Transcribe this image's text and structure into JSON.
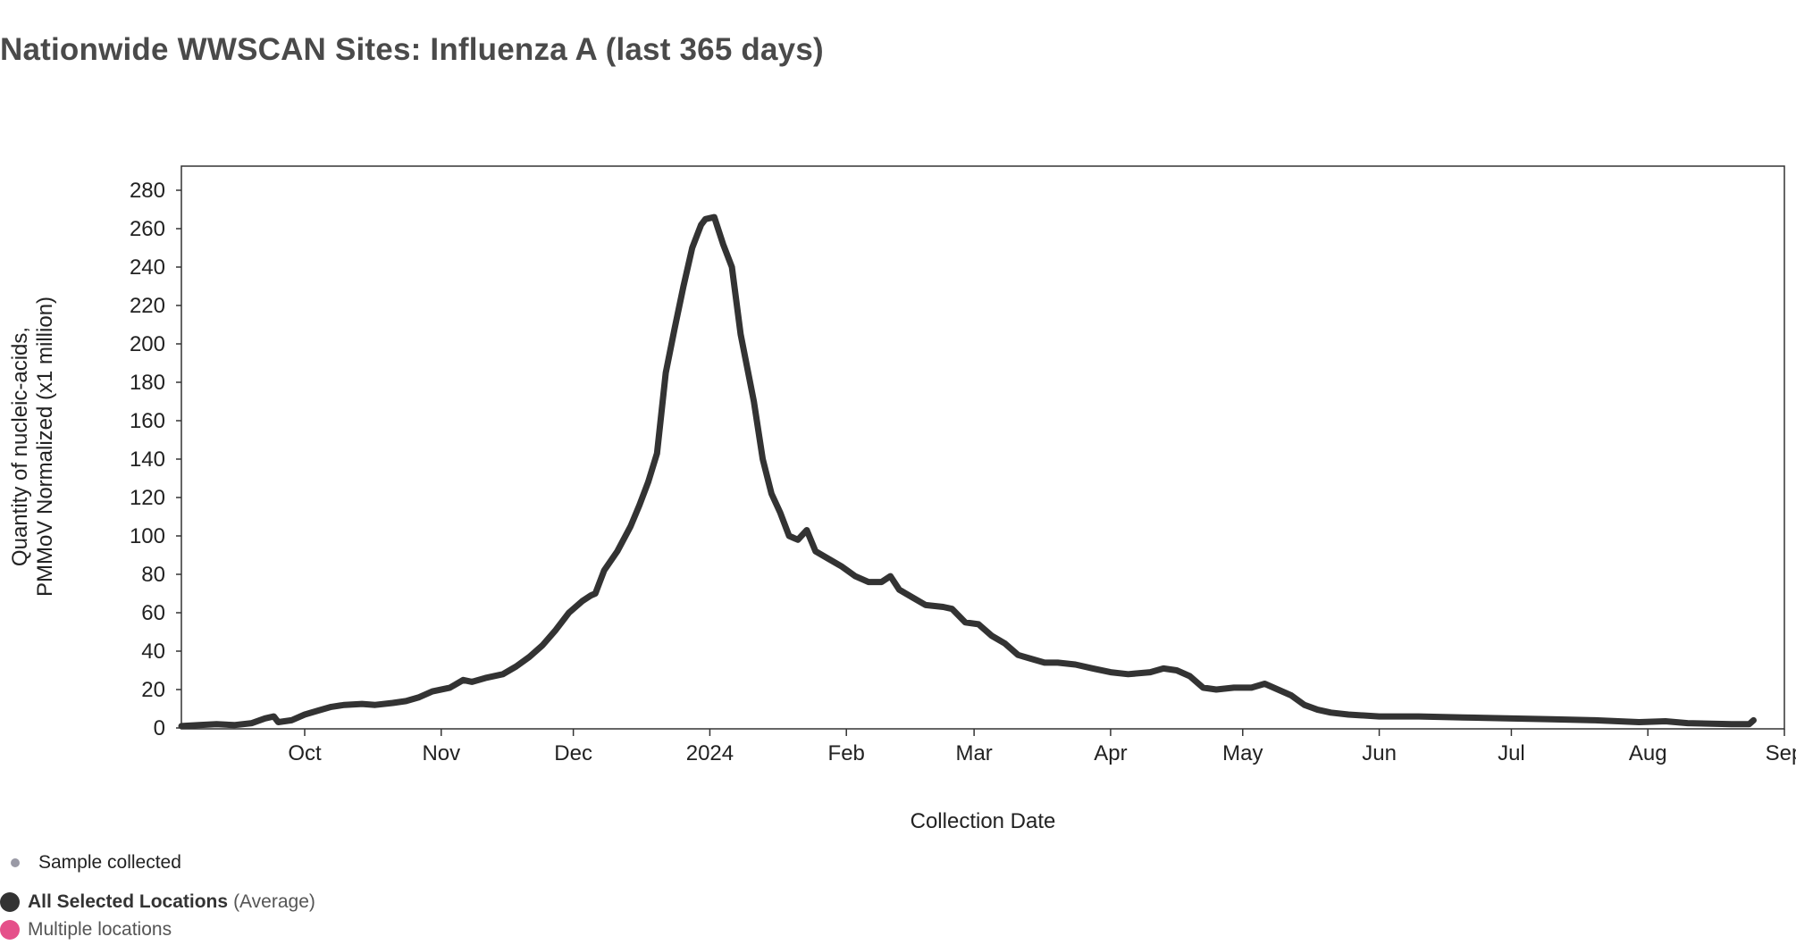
{
  "page": {
    "title": "Nationwide WWSCAN Sites: Influenza A (last 365 days)"
  },
  "legend": {
    "sample_label": "Sample collected",
    "average_bold": "All Selected Locations",
    "average_suffix": "(Average)",
    "multiple_label": "Multiple locations",
    "sample_color": "#9a9aa6",
    "average_color": "#333333",
    "multiple_color": "#e5508a"
  },
  "chart_data": {
    "type": "line",
    "xlabel": "Collection Date",
    "ylabel_lines": [
      "Quantity of nucleic-acids,",
      "PMMoV Normalized (x1 million)"
    ],
    "xlim": [
      "2023-09-03",
      "2024-09-01"
    ],
    "ylim": [
      0,
      290
    ],
    "y_ticks": [
      0,
      20,
      40,
      60,
      80,
      100,
      120,
      140,
      160,
      180,
      200,
      220,
      240,
      260,
      280
    ],
    "x_ticks": [
      {
        "date": "2023-10-01",
        "label": "Oct"
      },
      {
        "date": "2023-11-01",
        "label": "Nov"
      },
      {
        "date": "2023-12-01",
        "label": "Dec"
      },
      {
        "date": "2024-01-01",
        "label": "2024"
      },
      {
        "date": "2024-02-01",
        "label": "Feb"
      },
      {
        "date": "2024-03-01",
        "label": "Mar"
      },
      {
        "date": "2024-04-01",
        "label": "Apr"
      },
      {
        "date": "2024-05-01",
        "label": "May"
      },
      {
        "date": "2024-06-01",
        "label": "Jun"
      },
      {
        "date": "2024-07-01",
        "label": "Jul"
      },
      {
        "date": "2024-08-01",
        "label": "Aug"
      },
      {
        "date": "2024-09-01",
        "label": "Sep"
      }
    ],
    "grid": false,
    "series": [
      {
        "name": "All Selected Locations",
        "color": "#333333",
        "points": [
          [
            "2023-09-03",
            1
          ],
          [
            "2023-09-07",
            1.5
          ],
          [
            "2023-09-11",
            2
          ],
          [
            "2023-09-15",
            1.5
          ],
          [
            "2023-09-19",
            2.5
          ],
          [
            "2023-09-22",
            5
          ],
          [
            "2023-09-24",
            6
          ],
          [
            "2023-09-25",
            3
          ],
          [
            "2023-09-28",
            4
          ],
          [
            "2023-10-01",
            7
          ],
          [
            "2023-10-04",
            9
          ],
          [
            "2023-10-07",
            11
          ],
          [
            "2023-10-10",
            12
          ],
          [
            "2023-10-14",
            12.5
          ],
          [
            "2023-10-17",
            12
          ],
          [
            "2023-10-21",
            13
          ],
          [
            "2023-10-24",
            14
          ],
          [
            "2023-10-27",
            16
          ],
          [
            "2023-10-30",
            19
          ],
          [
            "2023-11-03",
            21
          ],
          [
            "2023-11-06",
            25
          ],
          [
            "2023-11-08",
            24
          ],
          [
            "2023-11-11",
            26
          ],
          [
            "2023-11-15",
            28
          ],
          [
            "2023-11-18",
            32
          ],
          [
            "2023-11-21",
            37
          ],
          [
            "2023-11-24",
            43
          ],
          [
            "2023-11-27",
            51
          ],
          [
            "2023-11-30",
            60
          ],
          [
            "2023-12-03",
            66
          ],
          [
            "2023-12-05",
            69
          ],
          [
            "2023-12-06",
            70
          ],
          [
            "2023-12-08",
            82
          ],
          [
            "2023-12-11",
            92
          ],
          [
            "2023-12-14",
            105
          ],
          [
            "2023-12-16",
            116
          ],
          [
            "2023-12-18",
            128
          ],
          [
            "2023-12-20",
            143
          ],
          [
            "2023-12-22",
            185
          ],
          [
            "2023-12-24",
            208
          ],
          [
            "2023-12-26",
            230
          ],
          [
            "2023-12-28",
            250
          ],
          [
            "2023-12-30",
            262
          ],
          [
            "2023-12-31",
            265
          ],
          [
            "2024-01-02",
            266
          ],
          [
            "2024-01-04",
            252
          ],
          [
            "2024-01-06",
            240
          ],
          [
            "2024-01-08",
            205
          ],
          [
            "2024-01-11",
            170
          ],
          [
            "2024-01-13",
            140
          ],
          [
            "2024-01-15",
            122
          ],
          [
            "2024-01-17",
            112
          ],
          [
            "2024-01-19",
            100
          ],
          [
            "2024-01-21",
            98
          ],
          [
            "2024-01-23",
            103
          ],
          [
            "2024-01-25",
            92
          ],
          [
            "2024-01-28",
            88
          ],
          [
            "2024-01-31",
            84
          ],
          [
            "2024-02-03",
            79
          ],
          [
            "2024-02-06",
            76
          ],
          [
            "2024-02-09",
            76
          ],
          [
            "2024-02-11",
            79
          ],
          [
            "2024-02-13",
            72
          ],
          [
            "2024-02-16",
            68
          ],
          [
            "2024-02-19",
            64
          ],
          [
            "2024-02-23",
            63
          ],
          [
            "2024-02-25",
            62
          ],
          [
            "2024-02-28",
            55
          ],
          [
            "2024-03-02",
            54
          ],
          [
            "2024-03-05",
            48
          ],
          [
            "2024-03-08",
            44
          ],
          [
            "2024-03-11",
            38
          ],
          [
            "2024-03-14",
            36
          ],
          [
            "2024-03-17",
            34
          ],
          [
            "2024-03-20",
            34
          ],
          [
            "2024-03-24",
            33
          ],
          [
            "2024-03-28",
            31
          ],
          [
            "2024-04-01",
            29
          ],
          [
            "2024-04-05",
            28
          ],
          [
            "2024-04-10",
            29
          ],
          [
            "2024-04-13",
            31
          ],
          [
            "2024-04-16",
            30
          ],
          [
            "2024-04-19",
            27
          ],
          [
            "2024-04-22",
            21
          ],
          [
            "2024-04-25",
            20
          ],
          [
            "2024-04-29",
            21
          ],
          [
            "2024-05-03",
            21
          ],
          [
            "2024-05-06",
            23
          ],
          [
            "2024-05-09",
            20
          ],
          [
            "2024-05-12",
            17
          ],
          [
            "2024-05-15",
            12
          ],
          [
            "2024-05-18",
            9.5
          ],
          [
            "2024-05-21",
            8
          ],
          [
            "2024-05-25",
            7
          ],
          [
            "2024-06-01",
            6
          ],
          [
            "2024-06-10",
            6
          ],
          [
            "2024-06-20",
            5.5
          ],
          [
            "2024-06-30",
            5
          ],
          [
            "2024-07-10",
            4.5
          ],
          [
            "2024-07-20",
            4
          ],
          [
            "2024-07-30",
            3
          ],
          [
            "2024-08-05",
            3.5
          ],
          [
            "2024-08-10",
            2.5
          ],
          [
            "2024-08-20",
            2
          ],
          [
            "2024-08-24",
            2
          ],
          [
            "2024-08-25",
            4
          ]
        ]
      }
    ]
  }
}
